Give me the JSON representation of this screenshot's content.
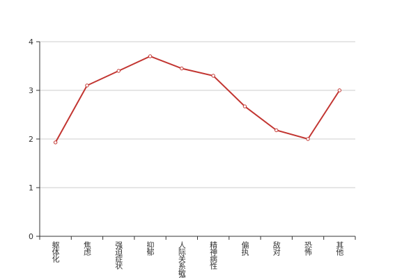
{
  "chart_data": {
    "type": "line",
    "categories": [
      "躯体化",
      "焦虑",
      "强迫症状",
      "抑郁",
      "人际关系敏感",
      "精神病性",
      "偏执",
      "敌对",
      "恐怖",
      "其他"
    ],
    "values": [
      1.93,
      3.1,
      3.4,
      3.7,
      3.45,
      3.3,
      2.67,
      2.18,
      2.0,
      3.0
    ],
    "color": "#c23531",
    "ylim": [
      0,
      4
    ],
    "yticks": [
      0,
      1,
      2,
      3,
      4
    ],
    "grid": true
  }
}
